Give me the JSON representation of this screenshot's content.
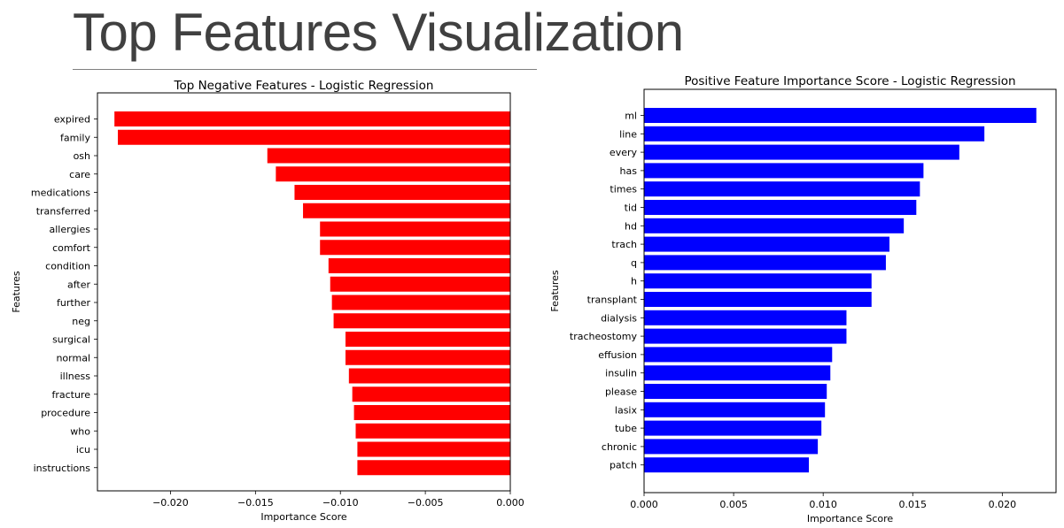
{
  "page": {
    "title": "Top Features Visualization"
  },
  "chart_data": [
    {
      "type": "bar",
      "orientation": "horizontal",
      "title": "Top Negative Features - Logistic Regression",
      "xlabel": "Importance Score",
      "ylabel": "Features",
      "color": "#ff0000",
      "xlim": [
        -0.0243,
        0.0
      ],
      "xticks": [
        -0.02,
        -0.015,
        -0.01,
        -0.005,
        0.0
      ],
      "xtick_labels": [
        "−0.020",
        "−0.015",
        "−0.010",
        "−0.005",
        "0.000"
      ],
      "grid": false,
      "categories": [
        "expired",
        "family",
        "osh",
        "care",
        "medications",
        "transferred",
        "allergies",
        "comfort",
        "condition",
        "after",
        "further",
        "neg",
        "surgical",
        "normal",
        "illness",
        "fracture",
        "procedure",
        "who",
        "icu",
        "instructions"
      ],
      "values": [
        -0.0233,
        -0.0231,
        -0.0143,
        -0.0138,
        -0.0127,
        -0.0122,
        -0.0112,
        -0.0112,
        -0.0107,
        -0.0106,
        -0.0105,
        -0.0104,
        -0.0097,
        -0.0097,
        -0.0095,
        -0.0093,
        -0.0092,
        -0.0091,
        -0.009,
        -0.009
      ]
    },
    {
      "type": "bar",
      "orientation": "horizontal",
      "title": "Positive Feature Importance Score - Logistic Regression",
      "xlabel": "Importance Score",
      "ylabel": "Features",
      "color": "#0000ff",
      "xlim": [
        0.0,
        0.023
      ],
      "xticks": [
        0.0,
        0.005,
        0.01,
        0.015,
        0.02
      ],
      "xtick_labels": [
        "0.000",
        "0.005",
        "0.010",
        "0.015",
        "0.020"
      ],
      "grid": false,
      "categories": [
        "ml",
        "line",
        "every",
        "has",
        "times",
        "tid",
        "hd",
        "trach",
        "q",
        "h",
        "transplant",
        "dialysis",
        "tracheostomy",
        "effusion",
        "insulin",
        "please",
        "lasix",
        "tube",
        "chronic",
        "patch"
      ],
      "values": [
        0.0219,
        0.019,
        0.0176,
        0.0156,
        0.0154,
        0.0152,
        0.0145,
        0.0137,
        0.0135,
        0.0127,
        0.0127,
        0.0113,
        0.0113,
        0.0105,
        0.0104,
        0.0102,
        0.0101,
        0.0099,
        0.0097,
        0.0092
      ]
    }
  ]
}
